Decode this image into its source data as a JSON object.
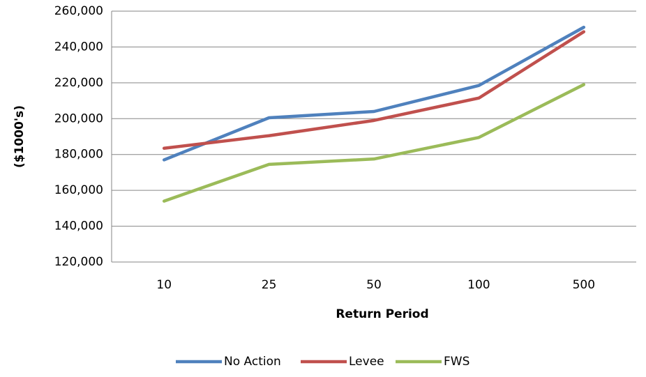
{
  "chart_data": {
    "type": "line",
    "y_label": "($1000's)",
    "x_label": "Return Period",
    "categories": [
      "10",
      "25",
      "50",
      "100",
      "500"
    ],
    "series": [
      {
        "name": "No Action",
        "color": "#4f81bd",
        "values": [
          177000,
          200500,
          204000,
          218500,
          251000
        ]
      },
      {
        "name": "Levee",
        "color": "#c0504d",
        "values": [
          183500,
          190500,
          199000,
          211500,
          248500
        ]
      },
      {
        "name": "FWS",
        "color": "#9bbb59",
        "values": [
          154000,
          174500,
          177500,
          189500,
          219000
        ]
      }
    ],
    "ylim": [
      120000,
      260000
    ],
    "yticks": [
      {
        "value": 120000,
        "label": "120,000"
      },
      {
        "value": 140000,
        "label": "140,000"
      },
      {
        "value": 160000,
        "label": "160,000"
      },
      {
        "value": 180000,
        "label": "180,000"
      },
      {
        "value": 200000,
        "label": "200,000"
      },
      {
        "value": 220000,
        "label": "220,000"
      },
      {
        "value": 240000,
        "label": "240,000"
      },
      {
        "value": 260000,
        "label": "260,000"
      }
    ],
    "grid": true,
    "legend": "bottom"
  }
}
